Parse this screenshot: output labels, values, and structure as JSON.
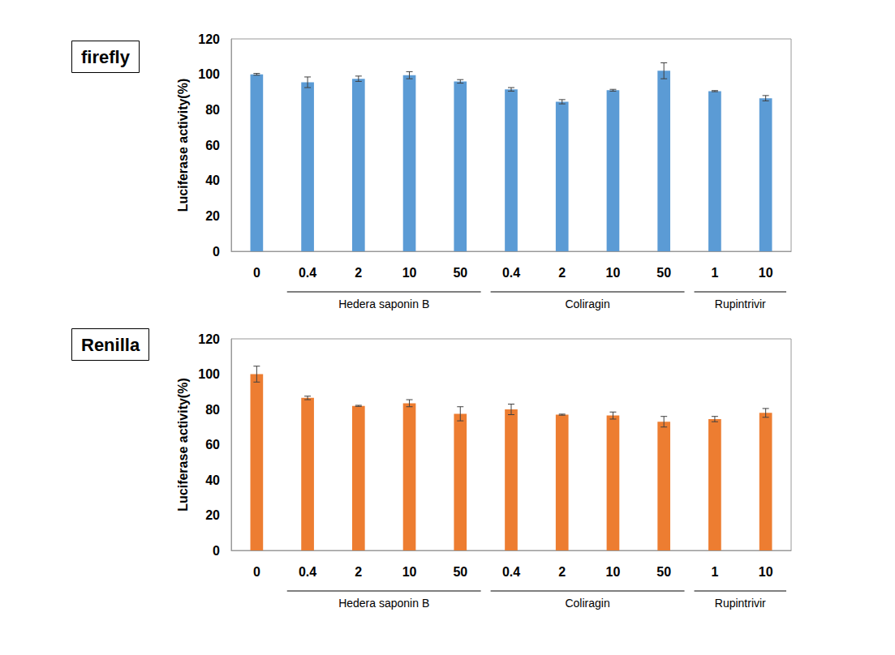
{
  "chart_data": [
    {
      "type": "bar",
      "title": "firefly",
      "y_label": "Luciferase activity(%)",
      "categories": [
        "0",
        "0.4",
        "2",
        "10",
        "50",
        "0.4",
        "2",
        "10",
        "50",
        "1",
        "10"
      ],
      "values": [
        100,
        95.5,
        97.5,
        99.5,
        96,
        91.5,
        84.5,
        91,
        102,
        90.5,
        86.5
      ],
      "errors": [
        0.5,
        3,
        1.5,
        2,
        1,
        1,
        1.2,
        0.5,
        4.5,
        0.3,
        1.5
      ],
      "color": "#5b9bd5",
      "groups": [
        {
          "label": "Hedera saponin B",
          "start": 1,
          "end": 4
        },
        {
          "label": "Coliragin",
          "start": 5,
          "end": 8
        },
        {
          "label": "Rupintrivir",
          "start": 9,
          "end": 10
        }
      ],
      "ylim": [
        0,
        120
      ],
      "yticks": [
        0,
        20,
        40,
        60,
        80,
        100,
        120
      ],
      "grid": false
    },
    {
      "type": "bar",
      "title": "Renilla",
      "y_label": "Luciferase activity(%)",
      "categories": [
        "0",
        "0.4",
        "2",
        "10",
        "50",
        "0.4",
        "2",
        "10",
        "50",
        "1",
        "10"
      ],
      "values": [
        100,
        86.5,
        82,
        83.5,
        77.5,
        80,
        77,
        76.5,
        73,
        74.5,
        78
      ],
      "errors": [
        4.5,
        1,
        0.3,
        2,
        4,
        3,
        0.3,
        2,
        3,
        1.5,
        2.5
      ],
      "color": "#ed7d31",
      "groups": [
        {
          "label": "Hedera saponin B",
          "start": 1,
          "end": 4
        },
        {
          "label": "Coliragin",
          "start": 5,
          "end": 8
        },
        {
          "label": "Rupintrivir",
          "start": 9,
          "end": 10
        }
      ],
      "ylim": [
        0,
        120
      ],
      "yticks": [
        0,
        20,
        40,
        60,
        80,
        100,
        120
      ],
      "grid": false
    }
  ]
}
